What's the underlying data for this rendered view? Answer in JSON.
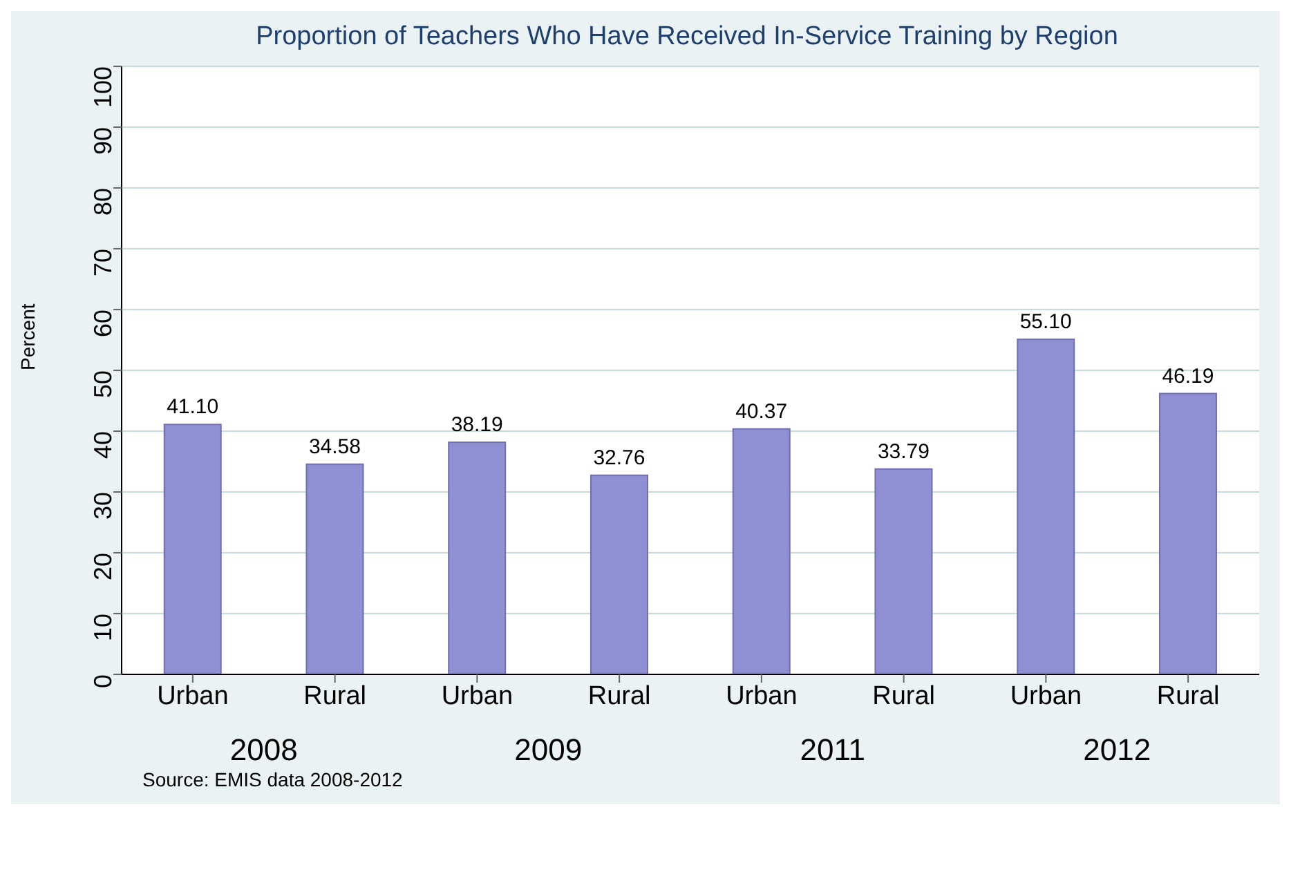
{
  "chart_data": {
    "type": "bar",
    "title": "Proportion of Teachers Who Have Received In-Service Training by Region",
    "ylabel": "Percent",
    "categories": [
      "Urban",
      "Rural",
      "Urban",
      "Rural",
      "Urban",
      "Rural",
      "Urban",
      "Rural"
    ],
    "values": [
      41.1,
      34.58,
      38.19,
      32.76,
      40.37,
      33.79,
      55.1,
      46.19
    ],
    "value_labels": [
      "41.10",
      "34.58",
      "38.19",
      "32.76",
      "40.37",
      "33.79",
      "55.10",
      "46.19"
    ],
    "color": "#8f8fd4",
    "ylim": [
      0,
      100
    ],
    "yticks": [
      0,
      10,
      20,
      30,
      40,
      50,
      60,
      70,
      80,
      90,
      100
    ],
    "grid": "y",
    "legend": false,
    "annotations": [
      "2008",
      "2009",
      "2011",
      "2012",
      "Source: EMIS data 2008-2012"
    ]
  }
}
